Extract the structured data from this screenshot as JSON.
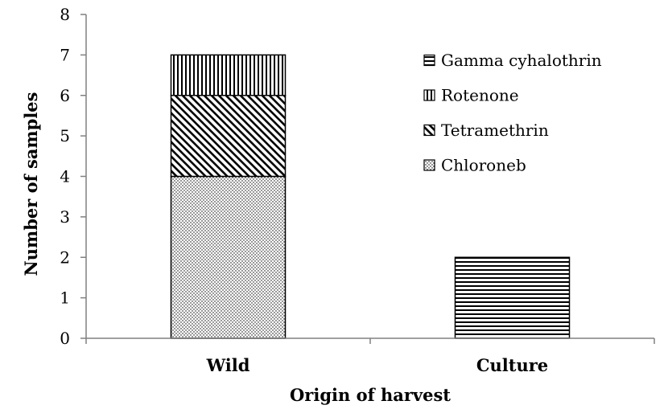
{
  "chart_data": {
    "type": "bar",
    "stacked": true,
    "categories": [
      "Wild",
      "Culture"
    ],
    "series": [
      {
        "name": "Chloroneb",
        "values": [
          4,
          0
        ],
        "pattern": "dots"
      },
      {
        "name": "Tetramethrin",
        "values": [
          2,
          0
        ],
        "pattern": "diagonal"
      },
      {
        "name": "Rotenone",
        "values": [
          1,
          0
        ],
        "pattern": "vertical"
      },
      {
        "name": "Gamma cyhalothrin",
        "values": [
          0,
          2
        ],
        "pattern": "horizontal"
      }
    ],
    "xlabel": "Origin of harvest",
    "ylabel": "Number of samples",
    "ylim": [
      0,
      8
    ],
    "yticks": [
      "0",
      "1",
      "2",
      "3",
      "4",
      "5",
      "6",
      "7",
      "8"
    ],
    "grid": false,
    "legend_position": "top-right",
    "legend_order": [
      "Gamma cyhalothrin",
      "Rotenone",
      "Tetramethrin",
      "Chloroneb"
    ]
  }
}
